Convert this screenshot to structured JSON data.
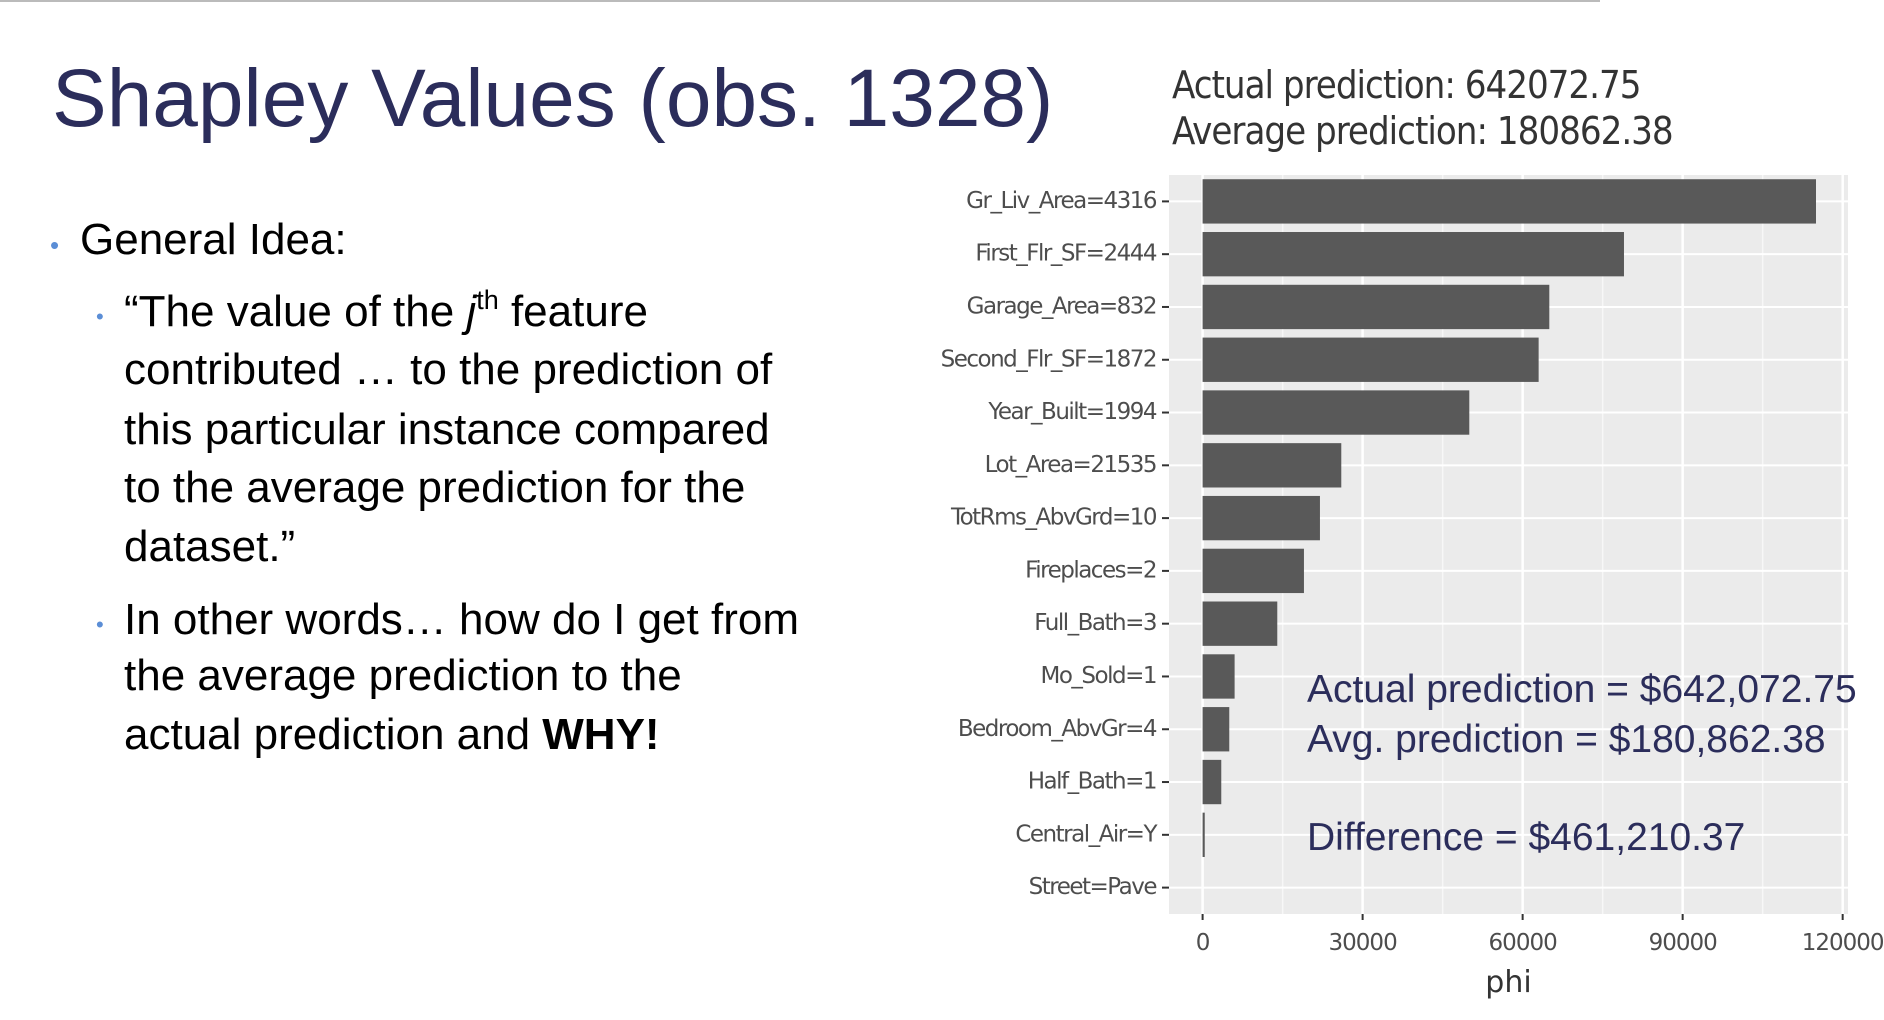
{
  "slide": {
    "title": "Shapley Values (obs. 1328)",
    "bullet": "General Idea:",
    "sub_bullet_1": {
      "first_line": [
        "“The value of the ",
        "j",
        "th",
        " feature"
      ],
      "lines": [
        "contributed … to the prediction of",
        "this particular instance compared",
        "to the average prediction for the",
        "dataset.”"
      ]
    },
    "sub_bullet_2": {
      "lines": [
        "In other words… how do I get from",
        "the average prediction to the"
      ],
      "last_line": [
        "actual prediction and ",
        "WHY!"
      ]
    }
  },
  "chart_data": {
    "type": "bar",
    "orientation": "horizontal",
    "subtitle": [
      "Actual prediction: 642072.75",
      "Average prediction: 180862.38"
    ],
    "categories": [
      "Gr_Liv_Area=4316",
      "First_Flr_SF=2444",
      "Garage_Area=832",
      "Second_Flr_SF=1872",
      "Year_Built=1994",
      "Lot_Area=21535",
      "TotRms_AbvGrd=10",
      "Fireplaces=2",
      "Full_Bath=3",
      "Mo_Sold=1",
      "Bedroom_AbvGr=4",
      "Half_Bath=1",
      "Central_Air=Y",
      "Street=Pave"
    ],
    "values": [
      115000,
      79000,
      65000,
      63000,
      50000,
      26000,
      22000,
      19000,
      14000,
      6000,
      5000,
      3500,
      400,
      0
    ],
    "color": "#595959",
    "xlabel": "phi",
    "xlim": [
      -6300,
      121000
    ],
    "xticks": [
      0,
      30000,
      60000,
      90000,
      120000
    ],
    "grid": true,
    "annotations": [
      "Actual prediction = $642,072.75",
      "Avg. prediction = $180,862.38",
      "Difference = $461,210.37"
    ]
  }
}
